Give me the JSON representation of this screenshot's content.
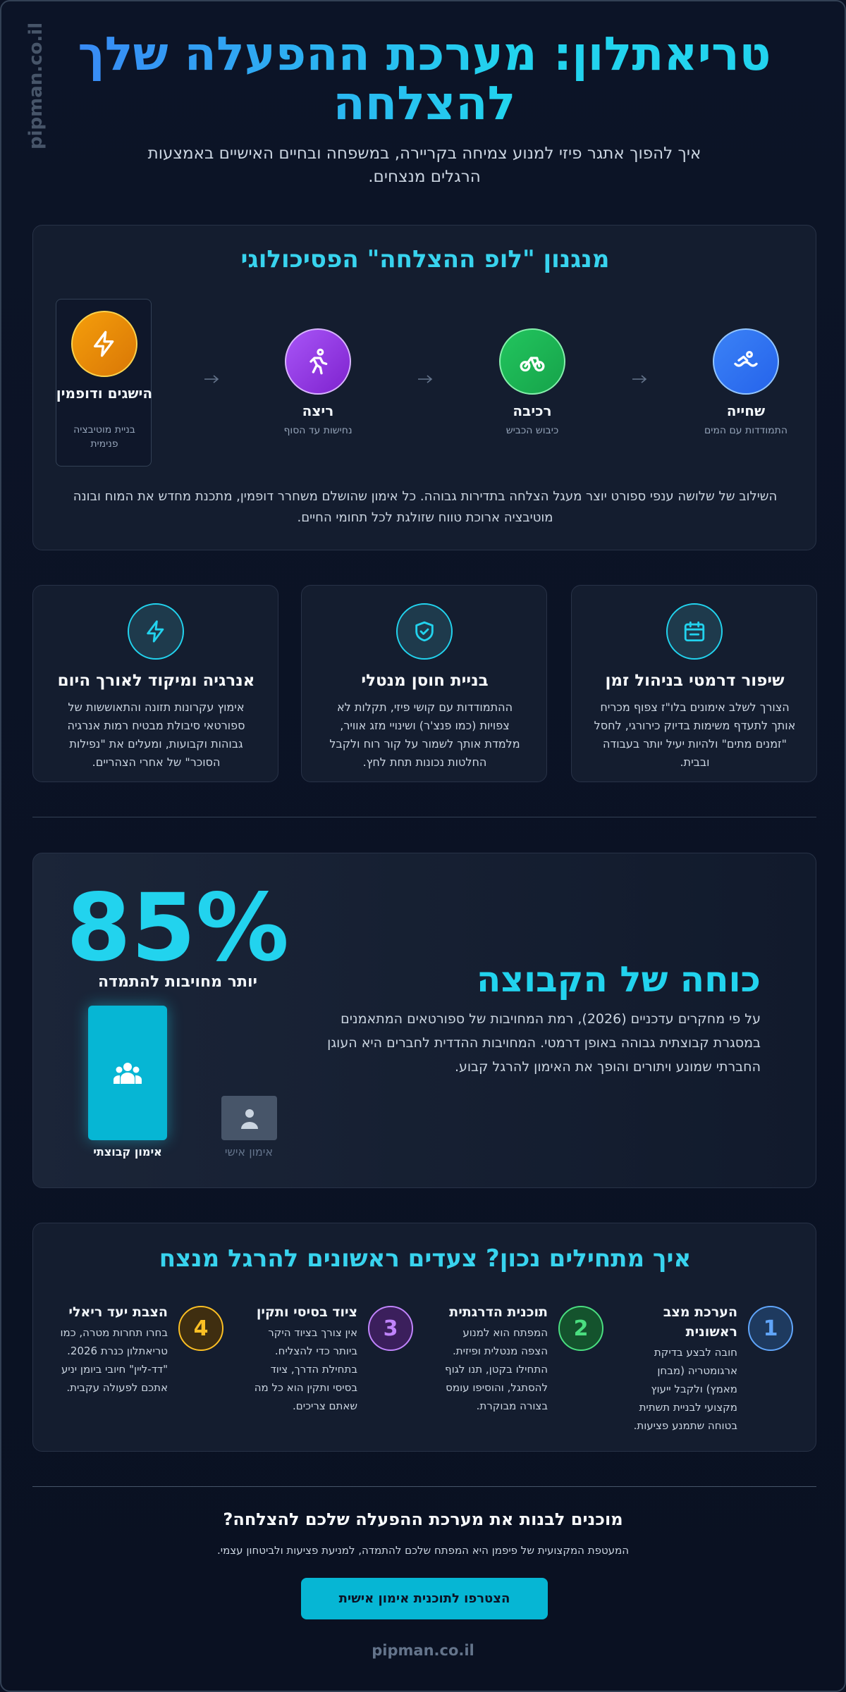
{
  "watermark": "pipman.co.il",
  "header": {
    "title": "טריאתלון: מערכת ההפעלה שלך להצלחה",
    "subtitle": "איך להפוך אתגר פיזי למנוע צמיחה בקריירה, במשפחה ובחיים האישיים באמצעות הרגלים מנצחים."
  },
  "loop": {
    "title": "מנגנון \"לופ ההצלחה\" הפסיכולוגי",
    "steps": [
      {
        "label": "שחייה",
        "caption": "התמודדות עם המים"
      },
      {
        "label": "רכיבה",
        "caption": "כיבוש הכביש"
      },
      {
        "label": "ריצה",
        "caption": "נחישות עד הסוף"
      },
      {
        "label": "הישגים ודופמין",
        "caption": "בניית מוטיבציה פנימית"
      }
    ],
    "text": "השילוב של שלושה ענפי ספורט יוצר מעגל הצלחה בתדירות גבוהה. כל אימון שהושלם משחרר דופמין, מתכנת מחדש את המוח ובונה מוטיבציה ארוכת טווח שזולגת לכל תחומי החיים."
  },
  "benefits": [
    {
      "title": "שיפור דרמטי בניהול זמן",
      "text": "הצורך לשלב אימונים בלו\"ז צפוף מכריח אותך לתעדף משימות בדיוק כירורגי, לחסל \"זמנים מתים\" ולהיות יעיל יותר בעבודה ובבית."
    },
    {
      "title": "בניית חוסן מנטלי",
      "text": "ההתמודדות עם קושי פיזי, תקלות לא צפויות (כמו פנצ'ר) ושינויי מזג אוויר, מלמדת אותך לשמור על קור רוח ולקבל החלטות נכונות תחת לחץ."
    },
    {
      "title": "אנרגיה ומיקוד לאורך היום",
      "text": "אימוץ עקרונות תזונה והתאוששות של ספורטאי סיבולת מבטיח רמות אנרגיה גבוהות וקבועות, ומעלים את \"נפילות הסוכר\" של אחרי הצהריים."
    }
  ],
  "team": {
    "stat": "85%",
    "stat_label": "יותר מחויבות להתמדה",
    "bars": [
      {
        "label": "אימון קבוצתי"
      },
      {
        "label": "אימון אישי"
      }
    ],
    "title": "כוחה של הקבוצה",
    "text": "על פי מחקרים עדכניים (2026), רמת המחויבות של ספורטאים המתאמנים במסגרת קבוצתית גבוהה באופן דרמטי. המחויבות ההדדית לחברים היא העוגן החברתי שמונע ויתורים והופך את האימון להרגל קבוע."
  },
  "start": {
    "title": "איך מתחילים נכון? צעדים ראשונים להרגל מנצח",
    "steps": [
      {
        "number": 1,
        "title": "הערכת מצב ראשונית",
        "text": "חובה לבצע בדיקת ארגומטריה (מבחן מאמץ) ולקבל ייעוץ מקצועי לבניית תשתית בטוחה שתמנע פציעות."
      },
      {
        "number": 2,
        "title": "תוכנית הדרגתית",
        "text": "המפתח הוא למנוע הצפה מנטלית ופיזית. התחילו בקטן, תנו לגוף להסתגל, והוסיפו עומס בצורה מבוקרת."
      },
      {
        "number": 3,
        "title": "ציוד בסיסי ותקין",
        "text": "אין צורך בציוד היקר ביותר כדי להצליח. בתחילת הדרך, ציוד בסיסי ותקין הוא כל מה שאתם צריכים."
      },
      {
        "number": 4,
        "title": "הצבת יעד ריאלי",
        "text": "בחרו תחרות מטרה, כמו טריאתלון כנרת 2026. \"דד-ליין\" חיובי ביומן יניע אתכם לפעולה עקבית."
      }
    ]
  },
  "cta": {
    "title": "מוכנים לבנות את מערכת ההפעלה שלכם להצלחה?",
    "text": "המעטפת המקצועית של פיפמן היא המפתח שלכם להתמדה, למניעת פציעות ולביטחון עצמי.",
    "button": "הצטרפו לתוכנית אימון אישית"
  },
  "footer": "pipman.co.il"
}
